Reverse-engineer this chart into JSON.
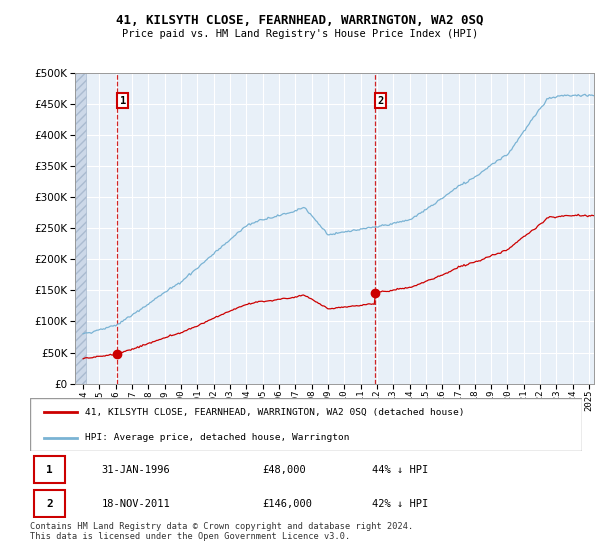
{
  "title": "41, KILSYTH CLOSE, FEARNHEAD, WARRINGTON, WA2 0SQ",
  "subtitle": "Price paid vs. HM Land Registry's House Price Index (HPI)",
  "legend_line1": "41, KILSYTH CLOSE, FEARNHEAD, WARRINGTON, WA2 0SQ (detached house)",
  "legend_line2": "HPI: Average price, detached house, Warrington",
  "table_rows": [
    {
      "num": "1",
      "date": "31-JAN-1996",
      "price": "£48,000",
      "hpi": "44% ↓ HPI"
    },
    {
      "num": "2",
      "date": "18-NOV-2011",
      "price": "£146,000",
      "hpi": "42% ↓ HPI"
    }
  ],
  "footer": "Contains HM Land Registry data © Crown copyright and database right 2024.\nThis data is licensed under the Open Government Licence v3.0.",
  "sale1_year": 1996.08,
  "sale1_price": 48000,
  "sale2_year": 2011.88,
  "sale2_price": 146000,
  "hpi_color": "#7ab3d4",
  "price_color": "#cc0000",
  "dashed_color": "#cc0000",
  "background_plot": "#e8f0f8",
  "ylim_max": 500000,
  "ylim_min": 0,
  "xmin": 1993.5,
  "xmax": 2025.3
}
